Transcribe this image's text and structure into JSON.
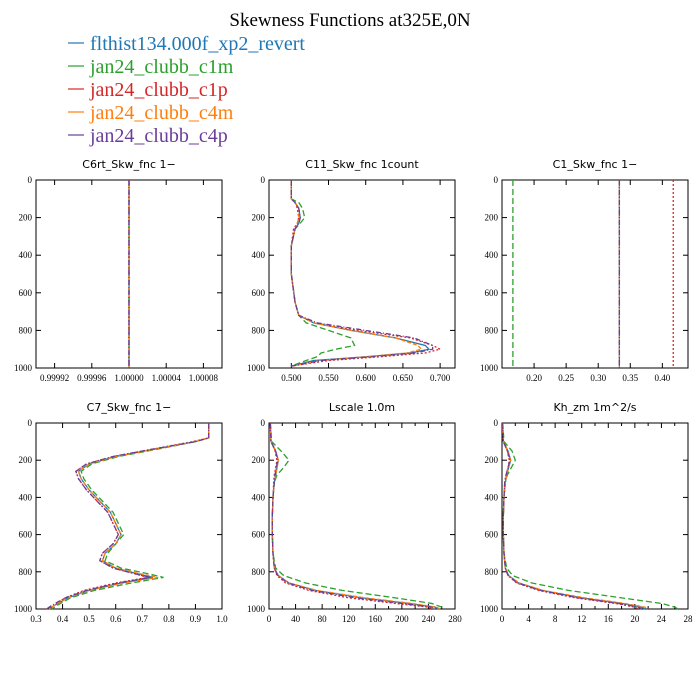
{
  "title": "Skewness Functions at325E,0N",
  "colors": {
    "flthist134.000f_xp2_revert": "#1f77b4",
    "jan24_clubb_c1m": "#2ca02c",
    "jan24_clubb_c1p": "#d62728",
    "jan24_clubb_c4m": "#ff7f0e",
    "jan24_clubb_c4p": "#6a3d9a"
  },
  "legend": [
    {
      "label": "flthist134.000f_xp2_revert",
      "color": "#1f77b4"
    },
    {
      "label": "jan24_clubb_c1m",
      "color": "#2ca02c"
    },
    {
      "label": "jan24_clubb_c1p",
      "color": "#d62728"
    },
    {
      "label": "jan24_clubb_c4m",
      "color": "#ff7f0e"
    },
    {
      "label": "jan24_clubb_c4p",
      "color": "#6a3d9a"
    }
  ],
  "chart_data": [
    {
      "type": "line",
      "title": "C6rt_Skw_fnc   1−",
      "xlim": [
        0.9999,
        1.0001
      ],
      "xticks": [
        0.99992,
        0.99996,
        1.0,
        1.00004,
        1.00008
      ],
      "xtick_labels": [
        "0.99992",
        "0.99996",
        "1.00000",
        "1.00004",
        "1.00008"
      ],
      "ylim": [
        0,
        1000
      ],
      "yticks": [
        0,
        200,
        400,
        600,
        800,
        1000
      ],
      "y": [
        0,
        1000
      ],
      "series": [
        {
          "name": "flthist134.000f_xp2_revert",
          "x": [
            1.0,
            1.0
          ]
        },
        {
          "name": "jan24_clubb_c1m",
          "x": [
            1.0,
            1.0
          ]
        },
        {
          "name": "jan24_clubb_c1p",
          "x": [
            1.0,
            1.0
          ]
        },
        {
          "name": "jan24_clubb_c4m",
          "x": [
            1.0,
            1.0
          ]
        },
        {
          "name": "jan24_clubb_c4p",
          "x": [
            1.0,
            1.0
          ]
        }
      ]
    },
    {
      "type": "line",
      "title": "C11_Skw_fnc   1count",
      "xlim": [
        0.47,
        0.72
      ],
      "xticks": [
        0.5,
        0.55,
        0.6,
        0.65,
        0.7
      ],
      "xtick_labels": [
        "0.500",
        "0.550",
        "0.600",
        "0.650",
        "0.700"
      ],
      "ylim": [
        0,
        1000
      ],
      "yticks": [
        0,
        200,
        400,
        600,
        800,
        1000
      ],
      "y": [
        0,
        100,
        120,
        150,
        200,
        230,
        260,
        350,
        500,
        650,
        720,
        760,
        800,
        840,
        880,
        900,
        920,
        940,
        960,
        990
      ],
      "series": [
        {
          "name": "flthist134.000f_xp2_revert",
          "x": [
            0.5,
            0.5,
            0.505,
            0.51,
            0.512,
            0.51,
            0.505,
            0.5,
            0.5,
            0.505,
            0.51,
            0.53,
            0.58,
            0.64,
            0.68,
            0.685,
            0.66,
            0.6,
            0.53,
            0.5
          ]
        },
        {
          "name": "jan24_clubb_c1m",
          "x": [
            0.5,
            0.5,
            0.51,
            0.515,
            0.518,
            0.512,
            0.505,
            0.5,
            0.5,
            0.505,
            0.51,
            0.52,
            0.55,
            0.58,
            0.585,
            0.56,
            0.54,
            0.535,
            0.52,
            0.5
          ]
        },
        {
          "name": "jan24_clubb_c1p",
          "x": [
            0.5,
            0.5,
            0.505,
            0.508,
            0.51,
            0.508,
            0.503,
            0.5,
            0.5,
            0.505,
            0.51,
            0.53,
            0.59,
            0.66,
            0.69,
            0.7,
            0.68,
            0.62,
            0.55,
            0.5
          ]
        },
        {
          "name": "jan24_clubb_c4m",
          "x": [
            0.5,
            0.5,
            0.505,
            0.51,
            0.51,
            0.508,
            0.505,
            0.5,
            0.5,
            0.505,
            0.51,
            0.53,
            0.58,
            0.64,
            0.67,
            0.675,
            0.655,
            0.6,
            0.54,
            0.5
          ]
        },
        {
          "name": "jan24_clubb_c4p",
          "x": [
            0.5,
            0.5,
            0.505,
            0.51,
            0.512,
            0.51,
            0.505,
            0.5,
            0.5,
            0.505,
            0.51,
            0.535,
            0.6,
            0.665,
            0.69,
            0.69,
            0.665,
            0.61,
            0.54,
            0.5
          ]
        }
      ]
    },
    {
      "type": "line",
      "title": "C1_Skw_fnc   1−",
      "xlim": [
        0.15,
        0.44
      ],
      "xticks": [
        0.2,
        0.25,
        0.3,
        0.35,
        0.4
      ],
      "xtick_labels": [
        "0.20",
        "0.25",
        "0.30",
        "0.35",
        "0.40"
      ],
      "ylim": [
        0,
        1000
      ],
      "yticks": [
        0,
        200,
        400,
        600,
        800,
        1000
      ],
      "y": [
        0,
        1000
      ],
      "series": [
        {
          "name": "flthist134.000f_xp2_revert",
          "x": [
            0.333,
            0.333
          ]
        },
        {
          "name": "jan24_clubb_c1m",
          "x": [
            0.167,
            0.167
          ]
        },
        {
          "name": "jan24_clubb_c1p",
          "x": [
            0.417,
            0.417
          ]
        },
        {
          "name": "jan24_clubb_c4m",
          "x": [
            0.333,
            0.333
          ]
        },
        {
          "name": "jan24_clubb_c4p",
          "x": [
            0.333,
            0.333
          ]
        }
      ]
    },
    {
      "type": "line",
      "title": "C7_Skw_fnc   1−",
      "xlim": [
        0.3,
        1.0
      ],
      "xticks": [
        0.3,
        0.4,
        0.5,
        0.6,
        0.7,
        0.8,
        0.9,
        1.0
      ],
      "xtick_labels": [
        "0.3",
        "0.4",
        "0.5",
        "0.6",
        "0.7",
        "0.8",
        "0.9",
        "1.0"
      ],
      "ylim": [
        0,
        1000
      ],
      "yticks": [
        0,
        200,
        400,
        600,
        800,
        1000
      ],
      "y": [
        0,
        80,
        100,
        140,
        180,
        220,
        260,
        300,
        360,
        420,
        480,
        540,
        600,
        650,
        700,
        740,
        780,
        810,
        830,
        860,
        900,
        940,
        980,
        1000
      ],
      "series": [
        {
          "name": "flthist134.000f_xp2_revert",
          "x": [
            0.95,
            0.95,
            0.9,
            0.75,
            0.6,
            0.5,
            0.46,
            0.47,
            0.5,
            0.54,
            0.58,
            0.6,
            0.62,
            0.6,
            0.56,
            0.55,
            0.6,
            0.68,
            0.74,
            0.62,
            0.5,
            0.42,
            0.37,
            0.35
          ]
        },
        {
          "name": "jan24_clubb_c1m",
          "x": [
            0.95,
            0.95,
            0.9,
            0.76,
            0.61,
            0.51,
            0.47,
            0.48,
            0.51,
            0.55,
            0.59,
            0.61,
            0.63,
            0.6,
            0.57,
            0.56,
            0.62,
            0.72,
            0.78,
            0.66,
            0.52,
            0.43,
            0.38,
            0.36
          ]
        },
        {
          "name": "jan24_clubb_c1p",
          "x": [
            0.95,
            0.95,
            0.89,
            0.74,
            0.59,
            0.49,
            0.45,
            0.46,
            0.49,
            0.53,
            0.57,
            0.59,
            0.61,
            0.59,
            0.55,
            0.54,
            0.59,
            0.67,
            0.72,
            0.6,
            0.48,
            0.41,
            0.37,
            0.34
          ]
        },
        {
          "name": "jan24_clubb_c4m",
          "x": [
            0.95,
            0.95,
            0.9,
            0.75,
            0.6,
            0.5,
            0.46,
            0.47,
            0.5,
            0.54,
            0.58,
            0.6,
            0.62,
            0.6,
            0.56,
            0.55,
            0.6,
            0.69,
            0.76,
            0.63,
            0.5,
            0.42,
            0.37,
            0.35
          ]
        },
        {
          "name": "jan24_clubb_c4p",
          "x": [
            0.95,
            0.95,
            0.9,
            0.74,
            0.59,
            0.49,
            0.45,
            0.46,
            0.49,
            0.53,
            0.57,
            0.59,
            0.61,
            0.59,
            0.55,
            0.54,
            0.59,
            0.67,
            0.73,
            0.61,
            0.49,
            0.41,
            0.36,
            0.34
          ]
        }
      ]
    },
    {
      "type": "line",
      "title": "Lscale   1.0m",
      "xlim": [
        0,
        280
      ],
      "xticks": [
        0,
        20,
        40,
        60,
        80,
        100,
        120,
        140,
        160,
        180,
        200,
        220,
        240,
        260,
        280
      ],
      "xtick_labels": [
        "0",
        "",
        "40",
        "",
        "80",
        "",
        "120",
        "",
        "160",
        "",
        "200",
        "",
        "240",
        "",
        "280"
      ],
      "ylim": [
        0,
        1000
      ],
      "yticks": [
        0,
        200,
        400,
        600,
        800,
        1000
      ],
      "y": [
        0,
        100,
        150,
        200,
        240,
        280,
        320,
        400,
        500,
        600,
        700,
        780,
        820,
        860,
        900,
        940,
        970,
        990,
        1000
      ],
      "series": [
        {
          "name": "flthist134.000f_xp2_revert",
          "x": [
            2,
            3,
            10,
            14,
            12,
            10,
            8,
            6,
            5,
            5,
            6,
            8,
            14,
            30,
            70,
            140,
            210,
            250,
            255
          ]
        },
        {
          "name": "jan24_clubb_c1m",
          "x": [
            2,
            4,
            18,
            30,
            22,
            12,
            8,
            6,
            5,
            5,
            6,
            10,
            22,
            55,
            110,
            190,
            245,
            260,
            262
          ]
        },
        {
          "name": "jan24_clubb_c1p",
          "x": [
            2,
            3,
            9,
            12,
            10,
            8,
            7,
            6,
            5,
            5,
            6,
            8,
            12,
            25,
            60,
            120,
            190,
            240,
            245
          ]
        },
        {
          "name": "jan24_clubb_c4m",
          "x": [
            2,
            3,
            10,
            14,
            12,
            10,
            8,
            6,
            5,
            5,
            6,
            8,
            14,
            30,
            72,
            145,
            215,
            252,
            258
          ]
        },
        {
          "name": "jan24_clubb_c4p",
          "x": [
            2,
            3,
            10,
            13,
            11,
            9,
            8,
            6,
            5,
            5,
            6,
            8,
            13,
            28,
            65,
            130,
            200,
            245,
            250
          ]
        }
      ]
    },
    {
      "type": "line",
      "title": "Kh_zm   1m^2/s",
      "xlim": [
        0,
        28
      ],
      "xticks": [
        0,
        2,
        4,
        6,
        8,
        10,
        12,
        14,
        16,
        18,
        20,
        22,
        24,
        26,
        28
      ],
      "xtick_labels": [
        "0",
        "",
        "4",
        "",
        "8",
        "",
        "12",
        "",
        "16",
        "",
        "20",
        "",
        "24",
        "",
        "28"
      ],
      "ylim": [
        0,
        1000
      ],
      "yticks": [
        0,
        200,
        400,
        600,
        800,
        1000
      ],
      "y": [
        0,
        100,
        150,
        200,
        240,
        280,
        320,
        400,
        500,
        600,
        700,
        780,
        820,
        860,
        900,
        940,
        970,
        990,
        1000
      ],
      "series": [
        {
          "name": "flthist134.000f_xp2_revert",
          "x": [
            0.1,
            0.2,
            0.9,
            1.3,
            1.0,
            0.7,
            0.5,
            0.3,
            0.2,
            0.2,
            0.3,
            0.5,
            1.0,
            2.5,
            6,
            12,
            18,
            21,
            21.5
          ]
        },
        {
          "name": "jan24_clubb_c1m",
          "x": [
            0.1,
            0.3,
            1.5,
            2.0,
            1.4,
            0.8,
            0.5,
            0.3,
            0.2,
            0.2,
            0.3,
            0.7,
            1.6,
            4.5,
            10,
            18,
            24,
            26,
            26.5
          ]
        },
        {
          "name": "jan24_clubb_c1p",
          "x": [
            0.1,
            0.2,
            0.8,
            1.1,
            0.9,
            0.6,
            0.4,
            0.3,
            0.2,
            0.2,
            0.3,
            0.5,
            0.9,
            2.2,
            5.5,
            11,
            17,
            20,
            20.5
          ]
        },
        {
          "name": "jan24_clubb_c4m",
          "x": [
            0.1,
            0.2,
            0.9,
            1.3,
            1.0,
            0.7,
            0.5,
            0.3,
            0.2,
            0.2,
            0.3,
            0.5,
            1.0,
            2.6,
            6.2,
            12.5,
            18.5,
            21.5,
            22
          ]
        },
        {
          "name": "jan24_clubb_c4p",
          "x": [
            0.1,
            0.2,
            0.8,
            1.2,
            0.9,
            0.6,
            0.4,
            0.3,
            0.2,
            0.2,
            0.3,
            0.5,
            0.9,
            2.3,
            5.8,
            11.5,
            17.5,
            20.5,
            21
          ]
        }
      ]
    }
  ]
}
